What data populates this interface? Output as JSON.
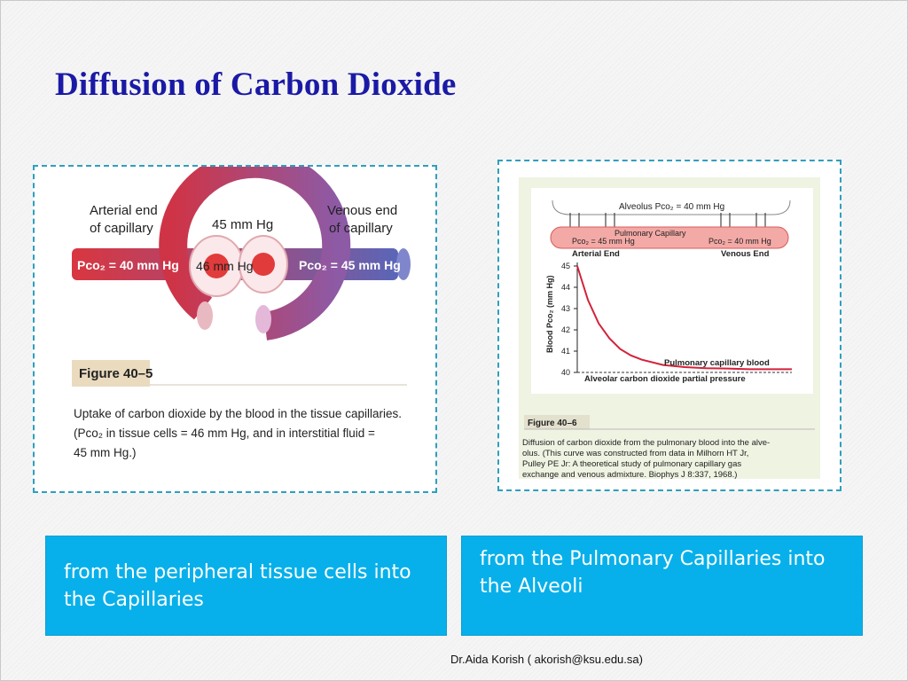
{
  "slide": {
    "title": "Diffusion of Carbon Dioxide",
    "footer": "Dr.Aida Korish ( akorish@ksu.edu.sa)"
  },
  "figure_left": {
    "arterial_label_1": "Arterial end",
    "arterial_label_2": "of capillary",
    "venous_label_1": "Venous end",
    "venous_label_2": "of capillary",
    "pressure_interstitial": "45 mm Hg",
    "pressure_cell": "46 mm Hg",
    "arterial_pco2": "Pco₂ = 40 mm Hg",
    "venous_pco2": "Pco₂ = 45 mm Hg",
    "figure_label": "Figure 40–5",
    "caption_line1": "Uptake of carbon dioxide by the blood in the tissue capillaries.",
    "caption_line2": "(Pco₂ in tissue cells = 46 mm Hg, and in interstitial fluid =",
    "caption_line3": "45 mm Hg.)"
  },
  "figure_right": {
    "alveolus_label": "Alveolus Pco₂ = 40 mm Hg",
    "capillary_label": "Pulmonary Capillary",
    "pco2_left": "Pco₂ = 45 mm Hg",
    "pco2_right": "Pco₂ = 40 mm Hg",
    "arterial_end": "Arterial End",
    "venous_end": "Venous End",
    "figure_label": "Figure 40–6",
    "caption_line1": "Diffusion of carbon dioxide from the pulmonary blood into the alve-",
    "caption_line2": "olus. (This curve was constructed from data in Milhorn HT Jr,",
    "caption_line3": "Pulley PE Jr: A theoretical study of pulmonary capillary gas",
    "caption_line4": "exchange and venous admixture. Biophys J 8:337, 1968.)"
  },
  "chart_data": {
    "type": "line",
    "ylabel": "Blood Pco₂ (mm Hg)",
    "ylim": [
      40,
      45
    ],
    "yticks": [
      "45",
      "44",
      "43",
      "42",
      "41",
      "40"
    ],
    "series": [
      {
        "name": "Pulmonary capillary blood",
        "x": [
          0.0,
          0.05,
          0.1,
          0.15,
          0.2,
          0.25,
          0.3,
          0.4,
          0.5,
          0.6,
          0.7,
          0.8,
          0.9,
          1.0
        ],
        "values": [
          45,
          43.4,
          42.3,
          41.6,
          41.1,
          40.8,
          40.6,
          40.35,
          40.25,
          40.2,
          40.18,
          40.15,
          40.15,
          40.15
        ],
        "color": "#d4213a"
      },
      {
        "name": "Alveolar carbon dioxide partial pressure",
        "x": [
          0.0,
          1.0
        ],
        "values": [
          40,
          40
        ],
        "color": "#333333"
      }
    ]
  },
  "info_boxes": {
    "left_text": "from the peripheral tissue cells into the Capillaries",
    "right_text": "from the Pulmonary Capillaries into the Alveoli",
    "color": "#07b0ea"
  }
}
